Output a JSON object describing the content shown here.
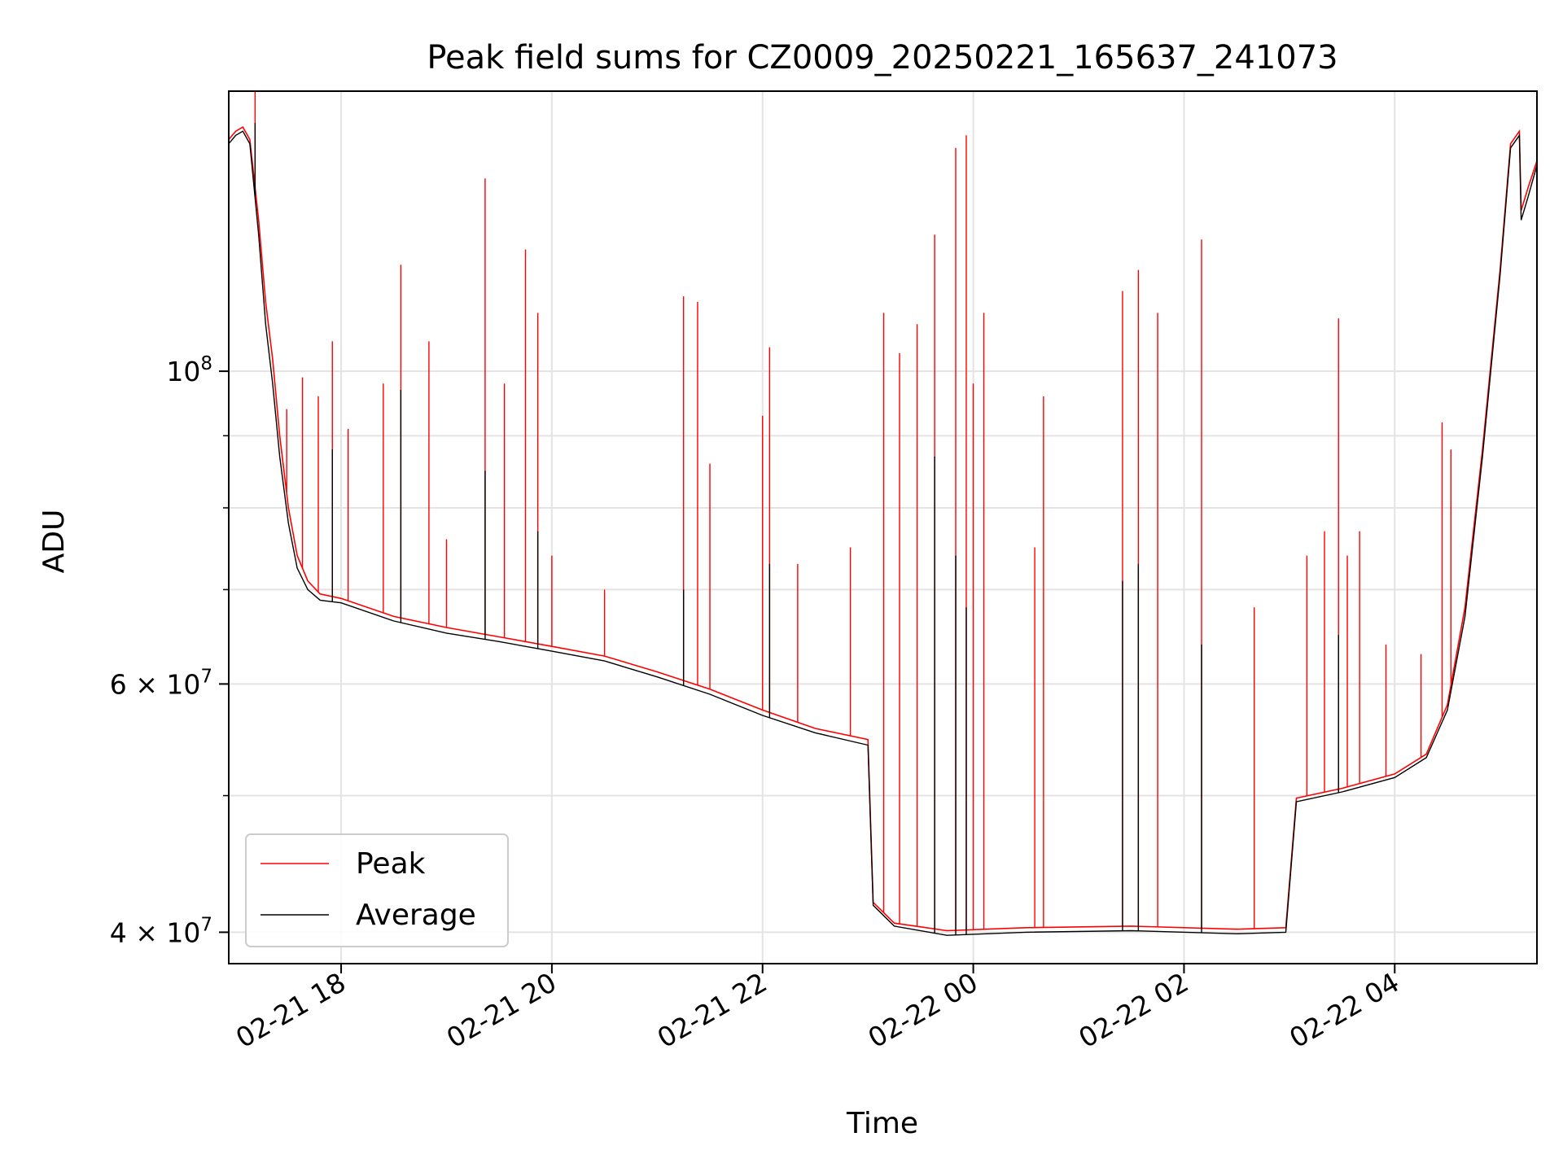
{
  "chart_data": {
    "type": "line",
    "title": "Peak field sums for CZ0009_20250221_165637_241073",
    "xlabel": "Time",
    "ylabel": "ADU",
    "yscale": "log",
    "ylim": [
      38000000,
      158000000
    ],
    "xlim": [
      "2025-02-21 16:56",
      "2025-02-22 05:21"
    ],
    "grid": true,
    "legend_position": "lower left",
    "x_ticks": [
      {
        "t": "2025-02-21 18:00",
        "label": "02-21 18"
      },
      {
        "t": "2025-02-21 20:00",
        "label": "02-21 20"
      },
      {
        "t": "2025-02-21 22:00",
        "label": "02-21 22"
      },
      {
        "t": "2025-02-22 00:00",
        "label": "02-22 00"
      },
      {
        "t": "2025-02-22 02:00",
        "label": "02-22 02"
      },
      {
        "t": "2025-02-22 04:00",
        "label": "02-22 04"
      }
    ],
    "y_ticks": [
      {
        "value": 100000000,
        "mant": "",
        "base": "10",
        "exp": "8"
      },
      {
        "value": 60000000,
        "mant": "6 × ",
        "base": "10",
        "exp": "7"
      },
      {
        "value": 40000000,
        "mant": "4 × ",
        "base": "10",
        "exp": "7"
      }
    ],
    "y_minor_ticks": [
      50000000,
      70000000,
      80000000,
      90000000
    ],
    "series": [
      {
        "name": "Peak",
        "color": "#ff0000",
        "baseline": [
          [
            "2025-02-21 16:56",
            146000000
          ],
          [
            "2025-02-21 17:00",
            148000000
          ],
          [
            "2025-02-21 17:04",
            149000000
          ],
          [
            "2025-02-21 17:08",
            146000000
          ],
          [
            "2025-02-21 17:13",
            128000000
          ],
          [
            "2025-02-21 17:17",
            112000000
          ],
          [
            "2025-02-21 17:21",
            102000000
          ],
          [
            "2025-02-21 17:25",
            90000000
          ],
          [
            "2025-02-21 17:30",
            80000000
          ],
          [
            "2025-02-21 17:35",
            74000000
          ],
          [
            "2025-02-21 17:41",
            71000000
          ],
          [
            "2025-02-21 17:48",
            69500000
          ],
          [
            "2025-02-21 18:00",
            69000000
          ],
          [
            "2025-02-21 18:30",
            67000000
          ],
          [
            "2025-02-21 19:00",
            65800000
          ],
          [
            "2025-02-21 19:30",
            64800000
          ],
          [
            "2025-02-21 20:00",
            63800000
          ],
          [
            "2025-02-21 20:30",
            62800000
          ],
          [
            "2025-02-21 21:00",
            61200000
          ],
          [
            "2025-02-21 21:30",
            59500000
          ],
          [
            "2025-02-21 22:00",
            57500000
          ],
          [
            "2025-02-21 22:30",
            55800000
          ],
          [
            "2025-02-21 23:00",
            54800000
          ],
          [
            "2025-02-21 23:03",
            42000000
          ],
          [
            "2025-02-21 23:15",
            40600000
          ],
          [
            "2025-02-21 23:45",
            40100000
          ],
          [
            "2025-02-22 00:30",
            40300000
          ],
          [
            "2025-02-22 01:30",
            40400000
          ],
          [
            "2025-02-22 02:30",
            40200000
          ],
          [
            "2025-02-22 02:58",
            40300000
          ],
          [
            "2025-02-22 03:04",
            49800000
          ],
          [
            "2025-02-22 03:30",
            50600000
          ],
          [
            "2025-02-22 04:00",
            51800000
          ],
          [
            "2025-02-22 04:18",
            53500000
          ],
          [
            "2025-02-22 04:30",
            58000000
          ],
          [
            "2025-02-22 04:40",
            68000000
          ],
          [
            "2025-02-22 04:50",
            88000000
          ],
          [
            "2025-02-22 05:00",
            118000000
          ],
          [
            "2025-02-22 05:06",
            145000000
          ],
          [
            "2025-02-22 05:11",
            148000000
          ],
          [
            "2025-02-22 05:12",
            130000000
          ],
          [
            "2025-02-22 05:16",
            135000000
          ],
          [
            "2025-02-22 05:21",
            141000000
          ]
        ],
        "spikes": [
          [
            "2025-02-21 17:11",
            158000000
          ],
          [
            "2025-02-21 17:29",
            94000000
          ],
          [
            "2025-02-21 17:38",
            99000000
          ],
          [
            "2025-02-21 17:47",
            96000000
          ],
          [
            "2025-02-21 17:55",
            105000000
          ],
          [
            "2025-02-21 18:04",
            91000000
          ],
          [
            "2025-02-21 18:24",
            98000000
          ],
          [
            "2025-02-21 18:34",
            119000000
          ],
          [
            "2025-02-21 18:50",
            105000000
          ],
          [
            "2025-02-21 19:00",
            76000000
          ],
          [
            "2025-02-21 19:22",
            137000000
          ],
          [
            "2025-02-21 19:33",
            98000000
          ],
          [
            "2025-02-21 19:45",
            122000000
          ],
          [
            "2025-02-21 19:52",
            110000000
          ],
          [
            "2025-02-21 20:00",
            74000000
          ],
          [
            "2025-02-21 20:30",
            70000000
          ],
          [
            "2025-02-21 21:15",
            113000000
          ],
          [
            "2025-02-21 21:23",
            112000000
          ],
          [
            "2025-02-21 21:30",
            86000000
          ],
          [
            "2025-02-21 22:00",
            93000000
          ],
          [
            "2025-02-21 22:04",
            104000000
          ],
          [
            "2025-02-21 22:20",
            73000000
          ],
          [
            "2025-02-21 22:50",
            75000000
          ],
          [
            "2025-02-21 23:09",
            110000000
          ],
          [
            "2025-02-21 23:18",
            103000000
          ],
          [
            "2025-02-21 23:28",
            108000000
          ],
          [
            "2025-02-21 23:38",
            125000000
          ],
          [
            "2025-02-21 23:50",
            144000000
          ],
          [
            "2025-02-21 23:56",
            147000000
          ],
          [
            "2025-02-22 00:00",
            98000000
          ],
          [
            "2025-02-22 00:06",
            110000000
          ],
          [
            "2025-02-22 00:35",
            75000000
          ],
          [
            "2025-02-22 00:40",
            96000000
          ],
          [
            "2025-02-22 01:25",
            114000000
          ],
          [
            "2025-02-22 01:34",
            118000000
          ],
          [
            "2025-02-22 01:45",
            110000000
          ],
          [
            "2025-02-22 02:10",
            124000000
          ],
          [
            "2025-02-22 02:40",
            68000000
          ],
          [
            "2025-02-22 03:10",
            74000000
          ],
          [
            "2025-02-22 03:20",
            77000000
          ],
          [
            "2025-02-22 03:28",
            109000000
          ],
          [
            "2025-02-22 03:33",
            74000000
          ],
          [
            "2025-02-22 03:40",
            77000000
          ],
          [
            "2025-02-22 03:55",
            64000000
          ],
          [
            "2025-02-22 04:15",
            63000000
          ],
          [
            "2025-02-22 04:27",
            92000000
          ],
          [
            "2025-02-22 04:32",
            88000000
          ]
        ]
      },
      {
        "name": "Average",
        "color": "#000000",
        "baseline": [
          [
            "2025-02-21 16:56",
            145000000
          ],
          [
            "2025-02-21 17:00",
            147000000
          ],
          [
            "2025-02-21 17:04",
            148000000
          ],
          [
            "2025-02-21 17:08",
            145000000
          ],
          [
            "2025-02-21 17:13",
            125000000
          ],
          [
            "2025-02-21 17:17",
            108000000
          ],
          [
            "2025-02-21 17:21",
            98000000
          ],
          [
            "2025-02-21 17:25",
            87000000
          ],
          [
            "2025-02-21 17:30",
            78000000
          ],
          [
            "2025-02-21 17:35",
            72500000
          ],
          [
            "2025-02-21 17:41",
            70000000
          ],
          [
            "2025-02-21 17:48",
            68800000
          ],
          [
            "2025-02-21 18:00",
            68500000
          ],
          [
            "2025-02-21 18:30",
            66500000
          ],
          [
            "2025-02-21 19:00",
            65200000
          ],
          [
            "2025-02-21 19:30",
            64300000
          ],
          [
            "2025-02-21 20:00",
            63300000
          ],
          [
            "2025-02-21 20:30",
            62300000
          ],
          [
            "2025-02-21 21:00",
            60700000
          ],
          [
            "2025-02-21 21:30",
            59000000
          ],
          [
            "2025-02-21 22:00",
            57000000
          ],
          [
            "2025-02-21 22:30",
            55400000
          ],
          [
            "2025-02-21 23:00",
            54300000
          ],
          [
            "2025-02-21 23:03",
            41800000
          ],
          [
            "2025-02-21 23:15",
            40400000
          ],
          [
            "2025-02-21 23:45",
            39800000
          ],
          [
            "2025-02-22 00:30",
            40000000
          ],
          [
            "2025-02-22 01:30",
            40100000
          ],
          [
            "2025-02-22 02:30",
            39900000
          ],
          [
            "2025-02-22 02:58",
            40000000
          ],
          [
            "2025-02-22 03:04",
            49500000
          ],
          [
            "2025-02-22 03:30",
            50300000
          ],
          [
            "2025-02-22 04:00",
            51500000
          ],
          [
            "2025-02-22 04:18",
            53200000
          ],
          [
            "2025-02-22 04:30",
            57500000
          ],
          [
            "2025-02-22 04:40",
            67000000
          ],
          [
            "2025-02-22 04:50",
            87000000
          ],
          [
            "2025-02-22 05:00",
            117000000
          ],
          [
            "2025-02-22 05:06",
            144000000
          ],
          [
            "2025-02-22 05:11",
            147000000
          ],
          [
            "2025-02-22 05:12",
            128000000
          ],
          [
            "2025-02-22 05:16",
            133000000
          ],
          [
            "2025-02-22 05:21",
            140000000
          ]
        ],
        "spikes": [
          [
            "2025-02-21 17:11",
            150000000
          ],
          [
            "2025-02-21 17:55",
            88000000
          ],
          [
            "2025-02-21 18:34",
            97000000
          ],
          [
            "2025-02-21 19:22",
            85000000
          ],
          [
            "2025-02-21 19:52",
            77000000
          ],
          [
            "2025-02-21 21:15",
            70000000
          ],
          [
            "2025-02-21 22:04",
            73000000
          ],
          [
            "2025-02-21 23:38",
            87000000
          ],
          [
            "2025-02-21 23:50",
            74000000
          ],
          [
            "2025-02-21 23:56",
            68000000
          ],
          [
            "2025-02-22 01:25",
            71000000
          ],
          [
            "2025-02-22 01:34",
            73000000
          ],
          [
            "2025-02-22 02:10",
            64000000
          ],
          [
            "2025-02-22 03:28",
            65000000
          ]
        ]
      }
    ]
  }
}
